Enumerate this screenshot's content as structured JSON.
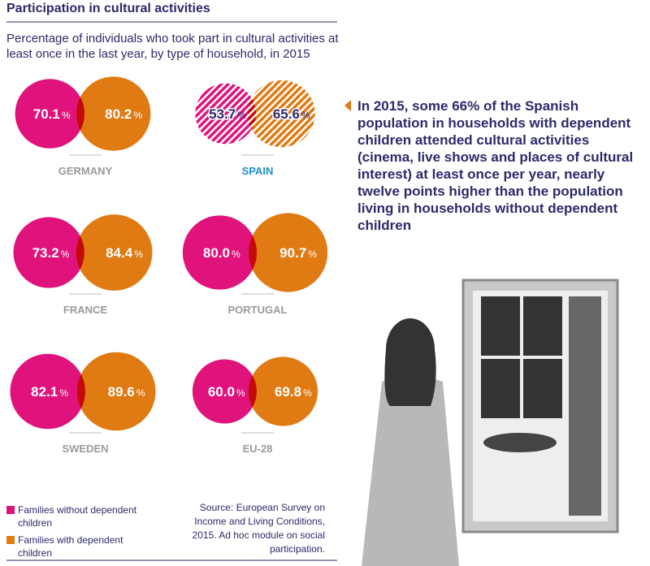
{
  "chart_data": {
    "type": "bubble-pair",
    "title": "Participation in cultural activities",
    "subtitle": "Percentage of individuals who took part in cultural activities at least once in the last year, by type of household, in 2015",
    "categories": [
      "GERMANY",
      "SPAIN",
      "FRANCE",
      "PORTUGAL",
      "SWEDEN",
      "EU-28"
    ],
    "unit": "%",
    "highlight": 1,
    "series": [
      {
        "name": "Families without dependent children",
        "color": "#e0127c",
        "values": [
          70.1,
          53.7,
          73.2,
          80.0,
          82.1,
          60.0
        ],
        "value_labels": [
          "70.1",
          "53.7",
          "73.2",
          "80.0",
          "82.1",
          "60.0"
        ]
      },
      {
        "name": "Families with dependent children",
        "color": "#e07a12",
        "values": [
          80.2,
          65.6,
          84.4,
          90.7,
          89.6,
          69.8
        ],
        "value_labels": [
          "80.2",
          "65.6",
          "84.4",
          "90.7",
          "89.6",
          "69.8"
        ]
      }
    ],
    "annotation": "In 2015, some 66% of the Spanish population in households with dependent children attended cultural activities (cinema, live shows and places of cultural interest) at least once per year, nearly twelve points higher than the population living in households without dependent children",
    "source": "Source: European Survey on Income and Living Conditions, 2015. Ad hoc module on social participation."
  }
}
